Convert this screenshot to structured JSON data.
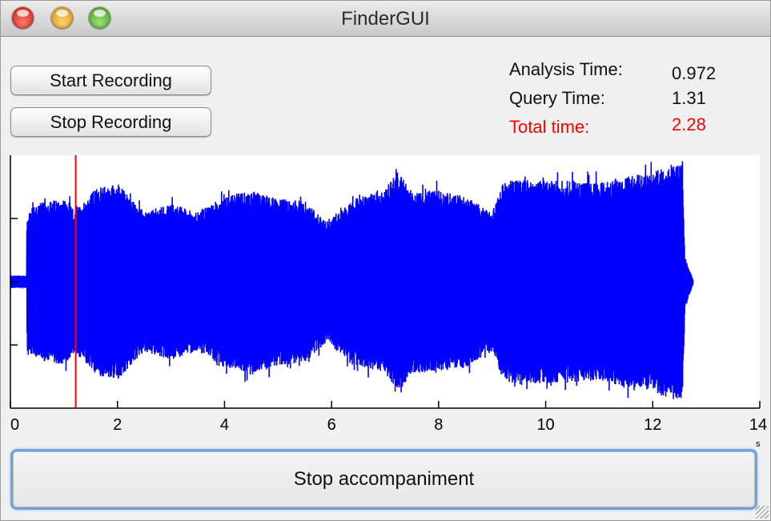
{
  "window": {
    "title": "FinderGUI",
    "controls": [
      "close",
      "minimize",
      "zoom"
    ]
  },
  "buttons": {
    "start_recording": "Start Recording",
    "stop_recording": "Stop Recording",
    "stop_accompaniment": "Stop accompaniment"
  },
  "stats": {
    "analysis_label": "Analysis Time:",
    "analysis_value": "0.972",
    "query_label": "Query Time:",
    "query_value": "1.31",
    "total_label": "Total time:",
    "total_value": "2.28"
  },
  "colors": {
    "waveform": "#0000ff",
    "cursor": "#ff0000",
    "total_time": "#ff0000"
  },
  "chart_data": {
    "type": "line",
    "title": "",
    "xlabel": "",
    "ylabel": "",
    "x_unit_label": "s",
    "xlim": [
      0,
      14
    ],
    "ylim": [
      -1,
      1
    ],
    "xticks": [
      0,
      2,
      4,
      6,
      8,
      10,
      12,
      14
    ],
    "yticks": [
      -0.5,
      0,
      0.5
    ],
    "cursor_x": 1.22,
    "signal_start": 0.3,
    "signal_end": 12.75,
    "series": [
      {
        "values_note_hidden": "",
        "envelope_time": [
          0.0,
          0.3,
          0.31,
          0.5,
          1.0,
          1.2,
          1.6,
          2.0,
          2.5,
          3.0,
          3.5,
          4.0,
          4.5,
          5.0,
          5.5,
          5.9,
          6.0,
          6.5,
          7.0,
          7.2,
          7.5,
          8.0,
          8.5,
          9.0,
          9.2,
          9.5,
          10.0,
          10.5,
          11.0,
          11.5,
          12.0,
          12.3,
          12.55,
          12.6,
          12.75
        ],
        "envelope_amp": [
          0.05,
          0.05,
          0.55,
          0.62,
          0.66,
          0.56,
          0.74,
          0.78,
          0.55,
          0.62,
          0.55,
          0.68,
          0.72,
          0.66,
          0.64,
          0.48,
          0.52,
          0.67,
          0.72,
          0.9,
          0.72,
          0.72,
          0.68,
          0.55,
          0.78,
          0.82,
          0.8,
          0.8,
          0.78,
          0.84,
          0.86,
          0.94,
          0.93,
          0.2,
          0.02
        ]
      }
    ]
  }
}
